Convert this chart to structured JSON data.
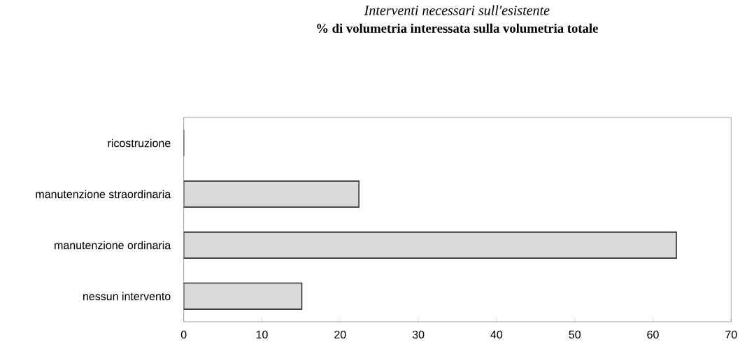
{
  "chart_data": {
    "type": "bar",
    "orientation": "horizontal",
    "title": "*Interventi necessari sull'esistente*",
    "subtitle": "% di volumetria interessata sulla volumetria totale",
    "categories": [
      "ricostruzione",
      "manutenzione straordinaria",
      "manutenzione ordinaria",
      "nessun intervento"
    ],
    "values": [
      0,
      22.4,
      63.0,
      15.1
    ],
    "color": "#d9d9d9",
    "xlim": [
      0,
      70
    ],
    "xticks": [
      0,
      10,
      20,
      30,
      40,
      50,
      60,
      70
    ],
    "grid": false
  }
}
